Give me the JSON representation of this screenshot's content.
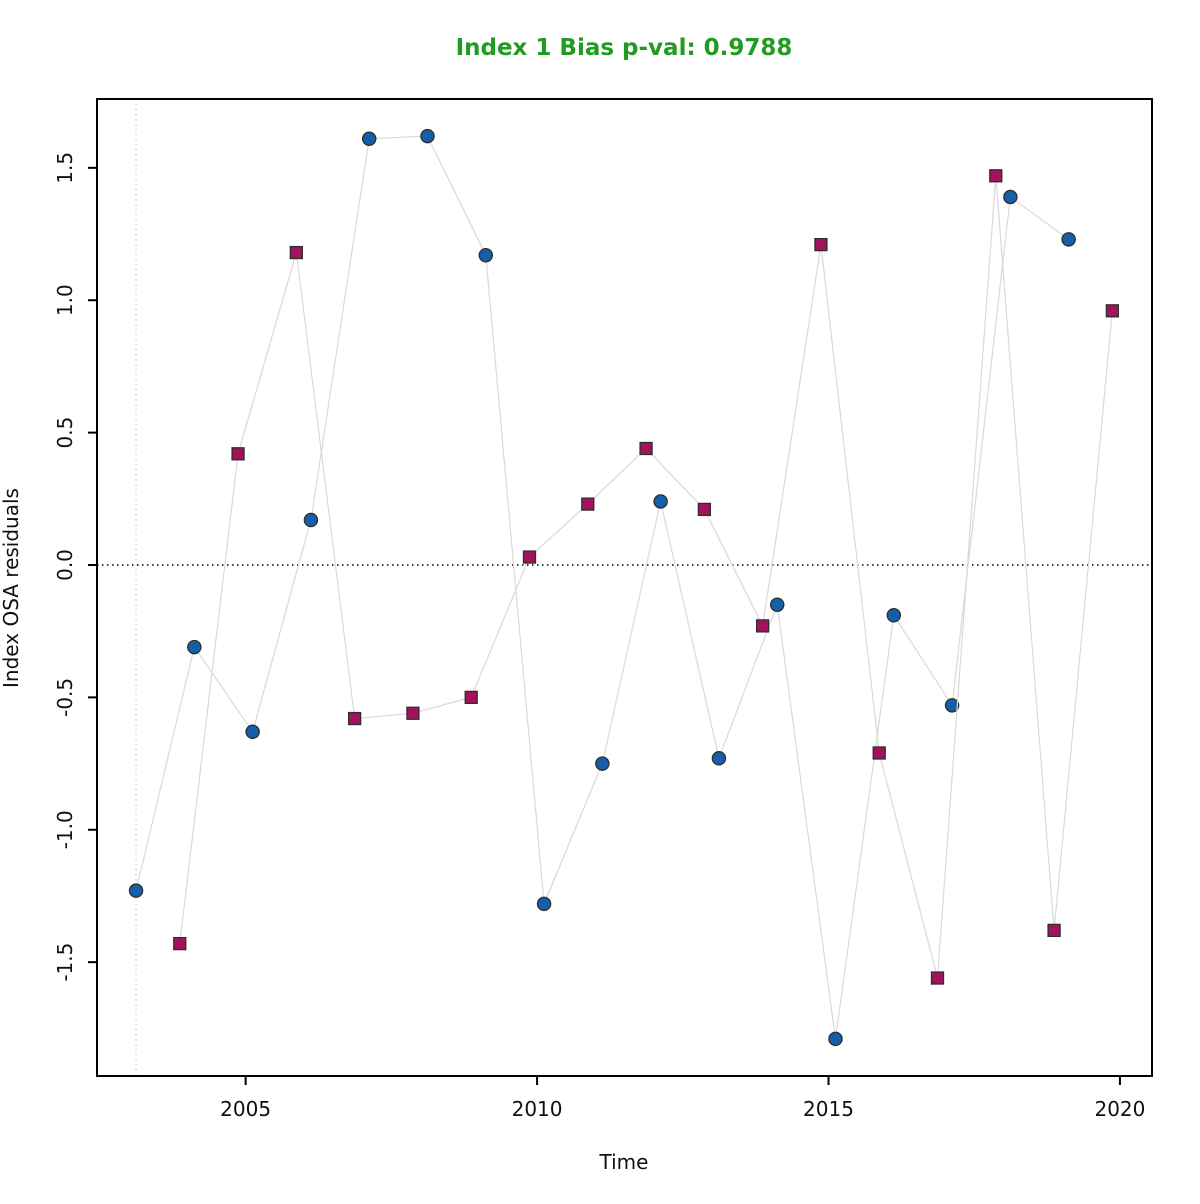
{
  "chart_data": {
    "type": "scatter",
    "title": "Index 1 Bias p-val: 0.9788",
    "title_color": "#229B22",
    "xlabel": "Time",
    "ylabel": "Index OSA residuals",
    "xlim": [
      2002.45,
      2020.55
    ],
    "ylim": [
      -1.93,
      1.76
    ],
    "x_ticks": [
      2005,
      2010,
      2015,
      2020
    ],
    "y_ticks": [
      "-1.5",
      "-1.0",
      "-0.5",
      "0.0",
      "0.5",
      "1.0",
      "1.5"
    ],
    "grid": false,
    "legend": "none",
    "zero_line_y": 0,
    "vline_x": 2003.12,
    "connector_line_color": "#D9D9D9",
    "zero_line_color": "#000000",
    "vline_color": "#CCCCCC",
    "series": [
      {
        "name": "residuals-circle-series",
        "marker": "circle",
        "color": "#155FA8",
        "x": [
          2003.12,
          2004.12,
          2005.12,
          2006.12,
          2007.12,
          2008.12,
          2009.12,
          2010.12,
          2011.12,
          2012.12,
          2013.12,
          2014.12,
          2015.12,
          2016.12,
          2017.12,
          2018.12,
          2019.12
        ],
        "values": [
          -1.23,
          -0.31,
          -0.63,
          0.17,
          1.61,
          1.62,
          1.17,
          -1.28,
          -0.75,
          0.24,
          -0.73,
          -0.15,
          -1.79,
          -0.19,
          -0.53,
          1.39,
          1.23
        ]
      },
      {
        "name": "residuals-square-series",
        "marker": "square",
        "color": "#A3125C",
        "x": [
          2003.87,
          2004.87,
          2005.87,
          2006.87,
          2007.87,
          2008.87,
          2009.87,
          2010.87,
          2011.87,
          2012.87,
          2013.87,
          2014.87,
          2015.87,
          2016.87,
          2017.87,
          2018.87,
          2019.87
        ],
        "values": [
          -1.43,
          0.42,
          1.18,
          -0.58,
          -0.56,
          -0.5,
          0.03,
          0.23,
          0.44,
          0.21,
          -0.23,
          1.21,
          -0.71,
          -1.56,
          1.47,
          -1.38,
          0.96
        ]
      }
    ]
  }
}
